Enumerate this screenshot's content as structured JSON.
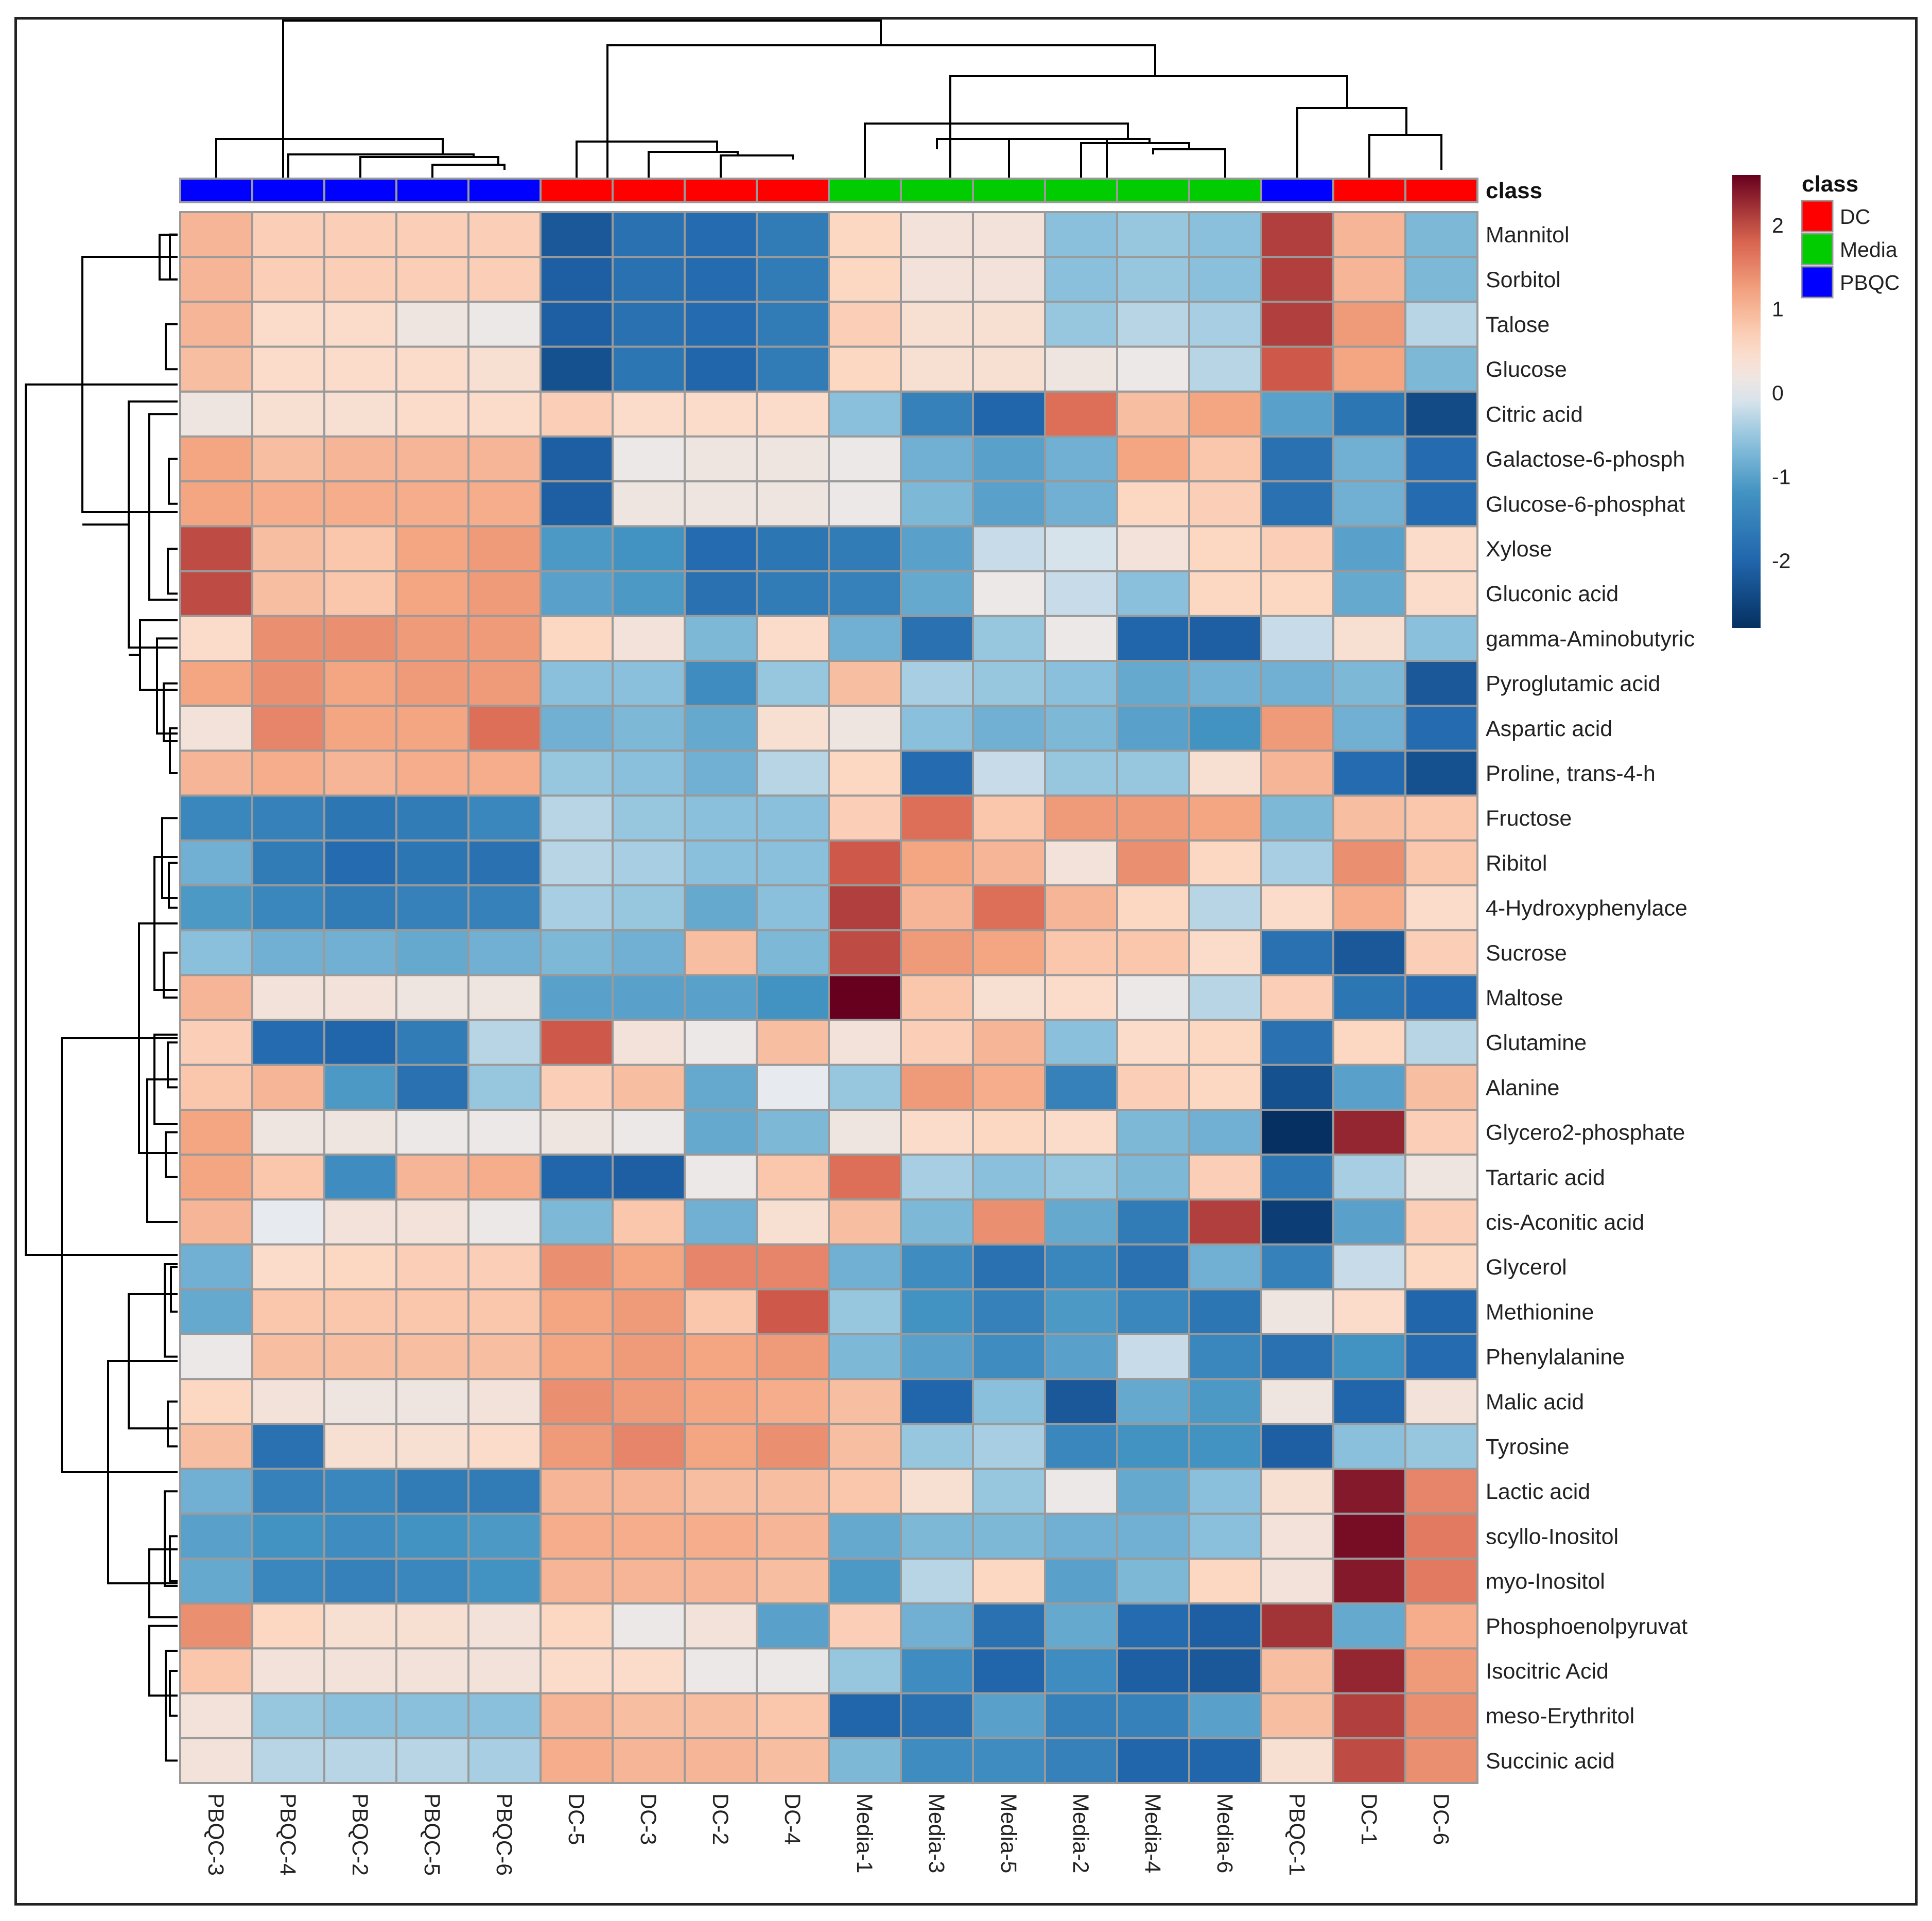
{
  "chart_data": {
    "type": "heatmap",
    "title": "",
    "annotation_title": "class",
    "colorbar": {
      "min": -2.8,
      "max": 2.6,
      "ticks": [
        2,
        1,
        0,
        -1,
        -2
      ]
    },
    "legend": {
      "title": "class",
      "entries": [
        {
          "label": "DC",
          "color": "#ff0000"
        },
        {
          "label": "Media",
          "color": "#00cc00"
        },
        {
          "label": "PBQC",
          "color": "#0000ff"
        }
      ]
    },
    "columns": [
      "PBQC-3",
      "PBQC-4",
      "PBQC-2",
      "PBQC-5",
      "PBQC-6",
      "DC-5",
      "DC-3",
      "DC-2",
      "DC-4",
      "Media-1",
      "Media-3",
      "Media-5",
      "Media-2",
      "Media-4",
      "Media-6",
      "PBQC-1",
      "DC-1",
      "DC-6"
    ],
    "column_classes": [
      "PBQC",
      "PBQC",
      "PBQC",
      "PBQC",
      "PBQC",
      "DC",
      "DC",
      "DC",
      "DC",
      "Media",
      "Media",
      "Media",
      "Media",
      "Media",
      "Media",
      "PBQC",
      "DC",
      "DC"
    ],
    "rows": [
      "Mannitol",
      "Sorbitol",
      "Talose",
      "Glucose",
      "Citric acid",
      "Galactose-6-phosph",
      "Glucose-6-phosphat",
      "Xylose",
      "Gluconic acid",
      "gamma-Aminobutyric",
      "Pyroglutamic acid",
      "Aspartic acid",
      "Proline, trans-4-h",
      "Fructose",
      "Ribitol",
      "4-Hydroxyphenylace",
      "Sucrose",
      "Maltose",
      "Glutamine",
      "Alanine",
      "Glycero2-phosphate",
      "Tartaric acid",
      "cis-Aconitic acid",
      "Glycerol",
      "Methionine",
      "Phenylalanine",
      "Malic acid",
      "Tyrosine",
      "Lactic acid",
      "scyllo-Inositol",
      "myo-Inositol",
      "Phosphoenolpyruvat",
      "Isocitric Acid",
      "meso-Erythritol",
      "Succinic acid"
    ],
    "values": [
      [
        1.0,
        0.7,
        0.7,
        0.7,
        0.7,
        -2.2,
        -1.8,
        -1.9,
        -1.6,
        0.6,
        0.3,
        0.3,
        -0.6,
        -0.5,
        -0.6,
        2.1,
        1.0,
        -0.7
      ],
      [
        1.0,
        0.7,
        0.7,
        0.7,
        0.7,
        -2.1,
        -1.8,
        -1.9,
        -1.6,
        0.6,
        0.3,
        0.3,
        -0.6,
        -0.5,
        -0.6,
        2.1,
        1.0,
        -0.7
      ],
      [
        1.0,
        0.5,
        0.5,
        0.2,
        0.1,
        -2.1,
        -1.8,
        -1.9,
        -1.6,
        0.7,
        0.4,
        0.4,
        -0.5,
        -0.3,
        -0.4,
        2.1,
        1.3,
        -0.3
      ],
      [
        0.9,
        0.5,
        0.5,
        0.5,
        0.4,
        -2.3,
        -1.7,
        -2.0,
        -1.6,
        0.6,
        0.4,
        0.4,
        0.2,
        0.1,
        -0.3,
        1.9,
        1.2,
        -0.7
      ],
      [
        0.2,
        0.4,
        0.4,
        0.5,
        0.5,
        0.7,
        0.5,
        0.5,
        0.5,
        -0.6,
        -1.5,
        -2.0,
        1.7,
        0.9,
        1.2,
        -1.0,
        -1.7,
        -2.4
      ],
      [
        1.2,
        0.9,
        1.0,
        1.0,
        1.0,
        -2.1,
        0.1,
        0.2,
        0.2,
        0.1,
        -0.8,
        -1.0,
        -0.8,
        1.2,
        0.8,
        -1.8,
        -0.8,
        -1.9
      ],
      [
        1.2,
        1.1,
        1.1,
        1.1,
        1.1,
        -2.1,
        0.2,
        0.2,
        0.2,
        0.1,
        -0.7,
        -1.0,
        -0.8,
        0.6,
        0.7,
        -1.8,
        -0.8,
        -1.9
      ],
      [
        2.0,
        0.9,
        0.8,
        1.2,
        1.3,
        -1.1,
        -1.2,
        -1.9,
        -1.7,
        -1.6,
        -1.0,
        -0.2,
        -0.1,
        0.3,
        0.6,
        0.7,
        -1.0,
        0.5
      ],
      [
        2.0,
        0.9,
        0.8,
        1.2,
        1.3,
        -1.0,
        -1.1,
        -1.8,
        -1.6,
        -1.5,
        -0.9,
        0.1,
        -0.2,
        -0.6,
        0.6,
        0.6,
        -0.9,
        0.5
      ],
      [
        0.5,
        1.4,
        1.4,
        1.3,
        1.3,
        0.6,
        0.3,
        -0.7,
        0.5,
        -0.8,
        -1.8,
        -0.5,
        0.1,
        -2.0,
        -2.1,
        -0.2,
        0.4,
        -0.6
      ],
      [
        1.2,
        1.4,
        1.2,
        1.3,
        1.3,
        -0.6,
        -0.6,
        -1.3,
        -0.5,
        0.9,
        -0.4,
        -0.5,
        -0.6,
        -0.9,
        -0.8,
        -0.8,
        -0.7,
        -2.2
      ],
      [
        0.3,
        1.5,
        1.2,
        1.2,
        1.7,
        -0.8,
        -0.7,
        -0.9,
        0.4,
        0.2,
        -0.6,
        -0.8,
        -0.7,
        -1.0,
        -1.2,
        1.3,
        -0.8,
        -1.9
      ],
      [
        1.0,
        1.1,
        1.0,
        1.1,
        1.1,
        -0.5,
        -0.6,
        -0.8,
        -0.3,
        0.6,
        -1.9,
        -0.2,
        -0.5,
        -0.5,
        0.4,
        1.0,
        -1.9,
        -2.3
      ],
      [
        -1.4,
        -1.5,
        -1.7,
        -1.6,
        -1.4,
        -0.3,
        -0.5,
        -0.6,
        -0.6,
        0.7,
        1.7,
        0.8,
        1.3,
        1.3,
        1.2,
        -0.7,
        0.9,
        0.8
      ],
      [
        -0.8,
        -1.6,
        -1.9,
        -1.7,
        -1.8,
        -0.3,
        -0.4,
        -0.6,
        -0.6,
        1.9,
        1.2,
        1.0,
        0.3,
        1.4,
        0.6,
        -0.4,
        1.4,
        0.8
      ],
      [
        -1.1,
        -1.4,
        -1.6,
        -1.5,
        -1.5,
        -0.4,
        -0.5,
        -0.9,
        -0.6,
        2.1,
        1.0,
        1.7,
        1.0,
        0.6,
        -0.3,
        0.5,
        1.1,
        0.5
      ],
      [
        -0.6,
        -0.8,
        -0.8,
        -0.9,
        -0.8,
        -0.7,
        -0.8,
        0.9,
        -0.7,
        2.0,
        1.3,
        1.2,
        0.8,
        0.8,
        0.5,
        -1.8,
        -2.2,
        0.7
      ],
      [
        1.0,
        0.3,
        0.3,
        0.2,
        0.2,
        -1.0,
        -1.0,
        -1.0,
        -1.2,
        2.6,
        0.8,
        0.4,
        0.5,
        0.1,
        -0.3,
        0.7,
        -1.7,
        -1.9
      ],
      [
        0.7,
        -1.9,
        -2.0,
        -1.6,
        -0.3,
        1.9,
        0.3,
        0.1,
        0.9,
        0.3,
        0.7,
        1.0,
        -0.6,
        0.5,
        0.6,
        -1.8,
        0.6,
        -0.3
      ],
      [
        0.8,
        1.0,
        -1.1,
        -1.8,
        -0.5,
        0.7,
        0.9,
        -0.9,
        0.0,
        -0.5,
        1.3,
        1.1,
        -1.5,
        0.7,
        0.6,
        -2.3,
        -1.0,
        0.9
      ],
      [
        1.2,
        0.2,
        0.2,
        0.1,
        0.1,
        0.2,
        0.1,
        -0.9,
        -0.7,
        0.2,
        0.5,
        0.6,
        0.5,
        -0.7,
        -0.8,
        -2.8,
        2.3,
        0.7
      ],
      [
        1.2,
        0.8,
        -1.3,
        1.0,
        1.1,
        -2.0,
        -2.1,
        0.1,
        0.8,
        1.7,
        -0.4,
        -0.6,
        -0.5,
        -0.7,
        0.7,
        -1.7,
        -0.4,
        0.2
      ],
      [
        1.0,
        0.0,
        0.3,
        0.3,
        0.1,
        -0.7,
        0.8,
        -0.8,
        0.4,
        0.9,
        -0.7,
        1.4,
        -0.9,
        -1.6,
        2.1,
        -2.6,
        -1.0,
        0.7
      ],
      [
        -0.8,
        0.5,
        0.6,
        0.7,
        0.7,
        1.4,
        1.2,
        1.5,
        1.5,
        -0.8,
        -1.3,
        -1.8,
        -1.4,
        -1.8,
        -0.8,
        -1.5,
        -0.2,
        0.6
      ],
      [
        -0.9,
        0.8,
        0.8,
        0.8,
        0.8,
        1.2,
        1.3,
        0.8,
        1.9,
        -0.5,
        -1.2,
        -1.5,
        -1.1,
        -1.4,
        -1.7,
        0.2,
        0.5,
        -2.0
      ],
      [
        0.1,
        0.9,
        0.9,
        0.9,
        0.9,
        1.2,
        1.3,
        1.2,
        1.3,
        -0.7,
        -1.0,
        -1.3,
        -1.0,
        -0.2,
        -1.4,
        -1.8,
        -1.2,
        -1.9
      ],
      [
        0.6,
        0.3,
        0.2,
        0.2,
        0.3,
        1.4,
        1.3,
        1.2,
        1.1,
        0.9,
        -2.0,
        -0.6,
        -2.2,
        -0.9,
        -1.1,
        0.2,
        -2.0,
        0.3
      ],
      [
        0.9,
        -1.8,
        0.4,
        0.4,
        0.5,
        1.3,
        1.5,
        1.2,
        1.4,
        0.9,
        -0.5,
        -0.4,
        -1.4,
        -1.2,
        -1.2,
        -2.1,
        -0.6,
        -0.5
      ],
      [
        -0.8,
        -1.5,
        -1.4,
        -1.6,
        -1.6,
        1.0,
        1.0,
        0.9,
        0.9,
        0.8,
        0.4,
        -0.5,
        0.1,
        -0.9,
        -0.6,
        0.4,
        2.4,
        1.5
      ],
      [
        -1.0,
        -1.2,
        -1.3,
        -1.2,
        -1.1,
        1.1,
        1.1,
        1.1,
        1.0,
        -0.9,
        -0.7,
        -0.7,
        -0.8,
        -0.8,
        -0.6,
        0.3,
        2.5,
        1.6
      ],
      [
        -0.9,
        -1.4,
        -1.5,
        -1.4,
        -1.2,
        1.0,
        1.0,
        1.0,
        0.9,
        -1.1,
        -0.3,
        0.6,
        -1.0,
        -0.7,
        0.6,
        0.3,
        2.4,
        1.6
      ],
      [
        1.4,
        0.6,
        0.4,
        0.4,
        0.3,
        0.6,
        0.1,
        0.3,
        -1.0,
        0.7,
        -0.8,
        -1.8,
        -0.9,
        -1.9,
        -2.1,
        2.2,
        -0.9,
        1.1
      ],
      [
        0.8,
        0.3,
        0.3,
        0.3,
        0.3,
        0.5,
        0.5,
        0.1,
        0.1,
        -0.5,
        -1.3,
        -2.0,
        -1.3,
        -2.1,
        -2.2,
        0.9,
        2.3,
        1.3
      ],
      [
        0.3,
        -0.5,
        -0.6,
        -0.6,
        -0.6,
        1.0,
        0.9,
        0.9,
        0.8,
        -2.0,
        -1.8,
        -1.0,
        -1.5,
        -1.5,
        -1.0,
        0.9,
        2.1,
        1.4
      ],
      [
        0.3,
        -0.3,
        -0.3,
        -0.3,
        -0.4,
        1.1,
        1.0,
        1.0,
        0.9,
        -0.7,
        -1.3,
        -1.3,
        -1.5,
        -2.0,
        -2.0,
        0.4,
        2.0,
        1.4
      ]
    ]
  }
}
